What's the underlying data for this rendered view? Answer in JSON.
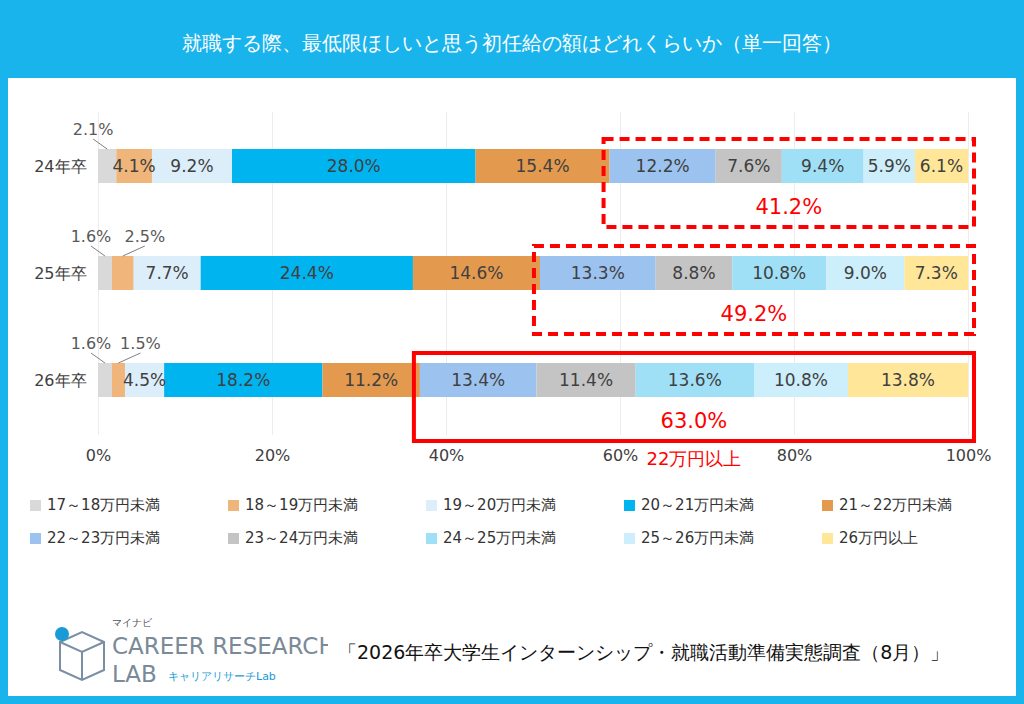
{
  "chart_data": {
    "type": "bar",
    "orientation": "horizontal",
    "stacked": true,
    "data_labels": true,
    "grid": true,
    "legend": "bottom",
    "title": "就職する際、最低限ほしいと思う初任給の額はどれくらいか（単一回答）",
    "categories": [
      "24年卒",
      "25年卒",
      "26年卒"
    ],
    "series": [
      {
        "name": "17～18万円未満",
        "color": "#d9d9d9",
        "values": [
          2.1,
          1.6,
          1.6
        ],
        "value_labels": [
          "2.1%",
          "1.6%",
          "1.6%"
        ]
      },
      {
        "name": "18～19万円未満",
        "color": "#efb57a",
        "values": [
          4.1,
          2.5,
          1.5
        ],
        "value_labels": [
          "4.1%",
          "2.5%",
          "1.5%"
        ]
      },
      {
        "name": "19～20万円未満",
        "color": "#ddeefb",
        "values": [
          9.2,
          7.7,
          4.5
        ],
        "value_labels": [
          "9.2%",
          "7.7%",
          "4.5%"
        ]
      },
      {
        "name": "20～21万円未満",
        "color": "#00b4f0",
        "values": [
          28.0,
          24.4,
          18.2
        ],
        "value_labels": [
          "28.0%",
          "24.4%",
          "18.2%"
        ]
      },
      {
        "name": "21～22万円未満",
        "color": "#e39a4f",
        "values": [
          15.4,
          14.6,
          11.2
        ],
        "value_labels": [
          "15.4%",
          "14.6%",
          "11.2%"
        ]
      },
      {
        "name": "22～23万円未満",
        "color": "#9cc3f0",
        "values": [
          12.2,
          13.3,
          13.4
        ],
        "value_labels": [
          "12.2%",
          "13.3%",
          "13.4%"
        ]
      },
      {
        "name": "23～24万円未満",
        "color": "#c4c4c4",
        "values": [
          7.6,
          8.8,
          11.4
        ],
        "value_labels": [
          "7.6%",
          "8.8%",
          "11.4%"
        ]
      },
      {
        "name": "24～25万円未満",
        "color": "#9fe0f7",
        "values": [
          9.4,
          10.8,
          13.6
        ],
        "value_labels": [
          "9.4%",
          "10.8%",
          "13.6%"
        ]
      },
      {
        "name": "25～26万円未満",
        "color": "#cdeefb",
        "values": [
          5.9,
          9.0,
          10.8
        ],
        "value_labels": [
          "5.9%",
          "9.0%",
          "10.8%"
        ]
      },
      {
        "name": "26万円以上",
        "color": "#ffe699",
        "values": [
          6.1,
          7.3,
          13.8
        ],
        "value_labels": [
          "6.1%",
          "7.3%",
          "13.8%"
        ]
      }
    ],
    "xlim": [
      0,
      100
    ],
    "xticks": [
      {
        "value": 0,
        "label": "0%"
      },
      {
        "value": 20,
        "label": "20%"
      },
      {
        "value": 40,
        "label": "40%"
      },
      {
        "value": 60,
        "label": "60%"
      },
      {
        "value": 80,
        "label": "80%"
      },
      {
        "value": 100,
        "label": "100%"
      }
    ],
    "annotations": [
      {
        "category": "24年卒",
        "text": "41.2%",
        "value": 41.2,
        "line_style": "dashed"
      },
      {
        "category": "25年卒",
        "text": "49.2%",
        "value": 49.2,
        "line_style": "dashed"
      },
      {
        "category": "26年卒",
        "text": "63.0%",
        "value": 63.0,
        "line_style": "solid",
        "caption": "22万円以上"
      }
    ]
  },
  "source": "「2026年卒大学生インターンシップ・就職活動準備実態調査（8月）」",
  "logo": {
    "brand": "マイナビ",
    "name": "CAREER RESEARCH",
    "lab": "LAB",
    "sub": "キャリアリサーチLab"
  }
}
